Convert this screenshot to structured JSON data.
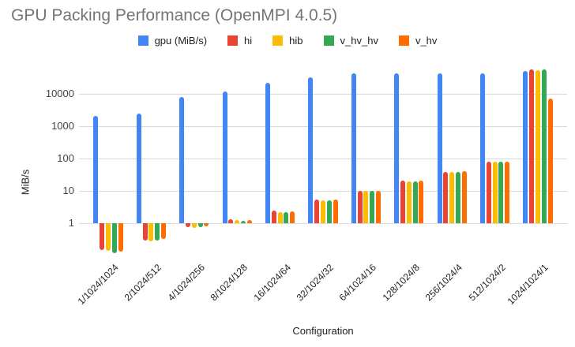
{
  "chart_data": {
    "type": "bar",
    "title": "GPU Packing Performance (OpenMPI 4.0.5)",
    "xlabel": "Configuration",
    "ylabel": "MiB/s",
    "y_scale": "log",
    "ylim": [
      0.1,
      100000
    ],
    "y_ticks": [
      1,
      10,
      100,
      1000,
      10000
    ],
    "bar_baseline": 1,
    "grid": "horizontal",
    "legend_position": "top-center",
    "categories": [
      "1/1024/1024",
      "2/1024/512",
      "4/1024/256",
      "8/1024/128",
      "16/1024/64",
      "32/1024/32",
      "64/1024/16",
      "128/1024/8",
      "256/1024/4",
      "512/1024/2",
      "1024/1024/1"
    ],
    "series": [
      {
        "name": "gpu (MiB/s)",
        "color": "#4285F4",
        "values": [
          2100,
          2500,
          8200,
          12000,
          22000,
          33000,
          42000,
          44000,
          44000,
          43000,
          52000
        ]
      },
      {
        "name": "hi",
        "color": "#EA4335",
        "values": [
          0.15,
          0.29,
          0.75,
          1.3,
          2.4,
          5.5,
          10,
          21,
          39,
          78,
          58000
        ]
      },
      {
        "name": "hib",
        "color": "#FBBC04",
        "values": [
          0.14,
          0.28,
          0.72,
          1.25,
          2.2,
          5.0,
          9.8,
          20,
          38,
          80,
          55000
        ]
      },
      {
        "name": "v_hv_hv",
        "color": "#34A853",
        "values": [
          0.12,
          0.29,
          0.74,
          1.2,
          2.2,
          5.0,
          10,
          20,
          38,
          78,
          58000
        ]
      },
      {
        "name": "v_hv",
        "color": "#FF6D01",
        "values": [
          0.13,
          0.32,
          0.78,
          1.25,
          2.3,
          5.3,
          10,
          21,
          40,
          80,
          7000
        ]
      }
    ]
  }
}
